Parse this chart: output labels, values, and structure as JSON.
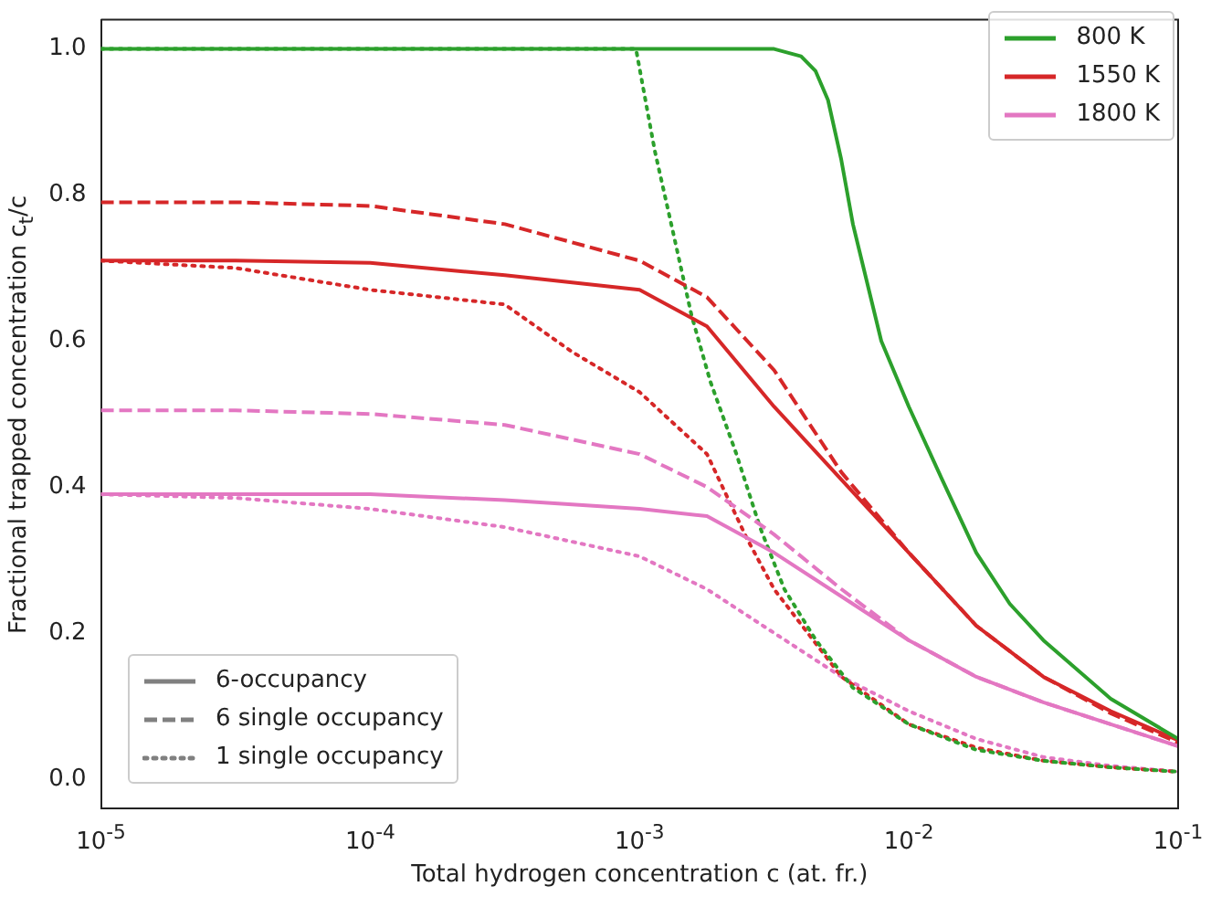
{
  "chart_data": {
    "type": "line",
    "xlabel": "Total hydrogen concentration c (at. fr.)",
    "ylabel": "Fractional trapped concentration c$_{t}$/c",
    "log": "x",
    "xlim": [
      1e-05,
      0.1
    ],
    "xticks": [
      {
        "value": 1e-05,
        "label": "10$^{-5}$"
      },
      {
        "value": 0.0001,
        "label": "10$^{-4}$"
      },
      {
        "value": 0.001,
        "label": "10$^{-3}$"
      },
      {
        "value": 0.01,
        "label": "10$^{-2}$"
      },
      {
        "value": 0.1,
        "label": "10$^{-1}$"
      }
    ],
    "ylim": [
      -0.04,
      1.04
    ],
    "yticks": [
      {
        "value": 0,
        "label": "0.0"
      },
      {
        "value": 0.2,
        "label": "0.2"
      },
      {
        "value": 0.4,
        "label": "0.4"
      },
      {
        "value": 0.6,
        "label": "0.6"
      },
      {
        "value": 0.8,
        "label": "0.8"
      },
      {
        "value": 1,
        "label": "1.0"
      }
    ],
    "grid": false,
    "legend": "top right",
    "marker": "none",
    "series": [
      {
        "name": "800 K",
        "color": "#2ca02c",
        "line_style": "solid",
        "x": [
          1e-05,
          0.0001,
          0.001,
          0.00316,
          0.00398,
          0.0045,
          0.00501,
          0.0056,
          0.0062,
          0.0079,
          0.01,
          0.0133,
          0.0178,
          0.0237,
          0.0316,
          0.0562,
          0.1
        ],
        "values": [
          1.0,
          1.0,
          1.0,
          1.0,
          0.99,
          0.97,
          0.93,
          0.85,
          0.76,
          0.6,
          0.51,
          0.41,
          0.31,
          0.24,
          0.19,
          0.11,
          0.055
        ]
      },
      {
        "name": "1550 K",
        "color": "#d62728",
        "line_style": "solid",
        "x": [
          1e-05,
          3.16e-05,
          0.0001,
          0.000316,
          0.001,
          0.00178,
          0.00316,
          0.00562,
          0.01,
          0.0178,
          0.0316,
          0.0562,
          0.1
        ],
        "values": [
          0.71,
          0.71,
          0.707,
          0.69,
          0.67,
          0.62,
          0.51,
          0.41,
          0.31,
          0.21,
          0.14,
          0.093,
          0.053
        ]
      },
      {
        "name": "1800 K",
        "color": "#e377c2",
        "line_style": "solid",
        "x": [
          1e-05,
          3.16e-05,
          0.0001,
          0.000316,
          0.001,
          0.00178,
          0.00316,
          0.00562,
          0.01,
          0.0178,
          0.0316,
          0.0562,
          0.1
        ],
        "values": [
          0.39,
          0.39,
          0.39,
          0.382,
          0.37,
          0.36,
          0.31,
          0.25,
          0.19,
          0.14,
          0.105,
          0.075,
          0.045
        ]
      },
      {
        "color": "#d62728",
        "line_style": "dashed",
        "x": [
          1e-05,
          3.16e-05,
          0.0001,
          0.000316,
          0.001,
          0.00178,
          0.00316,
          0.00562,
          0.01,
          0.0178,
          0.0316,
          0.0562,
          0.1
        ],
        "values": [
          0.79,
          0.79,
          0.785,
          0.76,
          0.71,
          0.66,
          0.56,
          0.42,
          0.31,
          0.21,
          0.14,
          0.09,
          0.05
        ]
      },
      {
        "color": "#e377c2",
        "line_style": "dashed",
        "x": [
          1e-05,
          3.16e-05,
          0.0001,
          0.000316,
          0.001,
          0.00178,
          0.00316,
          0.00562,
          0.01,
          0.0178,
          0.0316,
          0.0562,
          0.1
        ],
        "values": [
          0.505,
          0.505,
          0.5,
          0.485,
          0.445,
          0.4,
          0.335,
          0.26,
          0.19,
          0.14,
          0.105,
          0.075,
          0.045
        ]
      },
      {
        "color": "#2ca02c",
        "line_style": "dotted",
        "x": [
          1e-05,
          0.0001,
          0.00097,
          0.00114,
          0.00133,
          0.00156,
          0.00183,
          0.00229,
          0.0028,
          0.00345,
          0.00452,
          0.0062,
          0.01,
          0.0178,
          0.0316,
          0.0562,
          0.1
        ],
        "values": [
          1.0,
          1.0,
          1.0,
          0.86,
          0.75,
          0.635,
          0.545,
          0.445,
          0.345,
          0.26,
          0.19,
          0.125,
          0.075,
          0.04,
          0.025,
          0.016,
          0.01
        ]
      },
      {
        "color": "#d62728",
        "line_style": "dotted",
        "x": [
          1e-05,
          3.16e-05,
          0.0001,
          0.000316,
          0.000562,
          0.001,
          0.00178,
          0.0025,
          0.00316,
          0.00562,
          0.01,
          0.0178,
          0.0316,
          0.0562,
          0.1
        ],
        "values": [
          0.71,
          0.7,
          0.67,
          0.65,
          0.585,
          0.53,
          0.445,
          0.33,
          0.26,
          0.14,
          0.075,
          0.043,
          0.025,
          0.016,
          0.01
        ]
      },
      {
        "color": "#e377c2",
        "line_style": "dotted",
        "x": [
          1e-05,
          3.16e-05,
          0.0001,
          0.000316,
          0.001,
          0.00178,
          0.00316,
          0.00562,
          0.01,
          0.0178,
          0.0316,
          0.0562,
          0.1
        ],
        "values": [
          0.39,
          0.385,
          0.37,
          0.345,
          0.305,
          0.26,
          0.2,
          0.14,
          0.093,
          0.055,
          0.03,
          0.018,
          0.01
        ]
      },
      {
        "name": "6-occupancy",
        "color": "#808080",
        "line_style": "solid"
      },
      {
        "name": "6 single occupancy",
        "color": "#808080",
        "line_style": "dashed"
      },
      {
        "name": "1 single occupancy",
        "color": "#808080",
        "line_style": "dotted"
      }
    ]
  }
}
